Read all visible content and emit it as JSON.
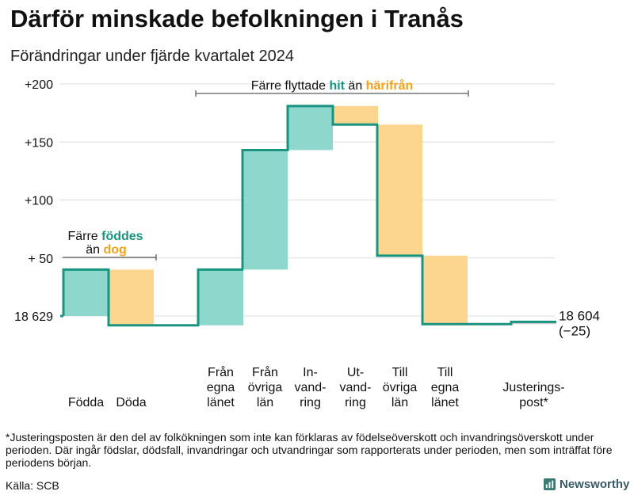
{
  "title": "Därför minskade befolkningen i Tranås",
  "subtitle": "Förändringar under fjärde kvartalet 2024",
  "footnote": "*Justeringsposten är den del av folkökningen som inte kan förklaras av födelseöverskott och invandringsöverskott under perioden. Där ingår födslar, dödsfall, invandringar och utvandringar som rapporterats under perioden, men som inträffat före periodens början.",
  "source": "Källa: SCB",
  "brand": "Newsworthy",
  "colors": {
    "increase": "#8ed7cc",
    "decrease": "#fcd68f",
    "line": "#1a9480",
    "grid": "#dddddd",
    "adjust": "#cccccc",
    "accent_teal": "#1a9480",
    "accent_orange": "#f5a21a"
  },
  "chart_data": {
    "type": "waterfall",
    "start_population": 18629,
    "end_population": 18604,
    "change": -25,
    "end_label": "18 604",
    "change_label": "(−25)",
    "y_axis": {
      "baseline": 18629,
      "ylim": [
        -30,
        200
      ],
      "ticks": [
        {
          "value": 200,
          "label": "+200"
        },
        {
          "value": 150,
          "label": "+150"
        },
        {
          "value": 100,
          "label": "+100"
        },
        {
          "value": 50,
          "label": "+ 50"
        },
        {
          "value": 0,
          "label": "18 629"
        }
      ]
    },
    "categories": [
      {
        "label": [
          "Födda"
        ],
        "value": 40
      },
      {
        "label": [
          "Döda"
        ],
        "value": -48
      },
      {
        "label": [
          "Från",
          "egna",
          "länet"
        ],
        "value": 48
      },
      {
        "label": [
          "Från",
          "övriga",
          "län"
        ],
        "value": 103
      },
      {
        "label": [
          "In-",
          "vand-",
          "ring"
        ],
        "value": 38
      },
      {
        "label": [
          "Ut-",
          "vand-",
          "ring"
        ],
        "value": -16
      },
      {
        "label": [
          "Till",
          "övriga",
          "län"
        ],
        "value": -113
      },
      {
        "label": [
          "Till",
          "egna",
          "länet"
        ],
        "value": -59
      },
      {
        "label": [
          "Justerings-",
          "post*"
        ],
        "value": 2
      }
    ],
    "annotations": [
      {
        "parts": [
          "Färre ",
          "föddes"
        ],
        "parts2": [
          "än ",
          "dog"
        ]
      },
      {
        "parts": [
          "Färre flyttade ",
          "hit",
          " än ",
          "härifrån"
        ]
      }
    ]
  }
}
